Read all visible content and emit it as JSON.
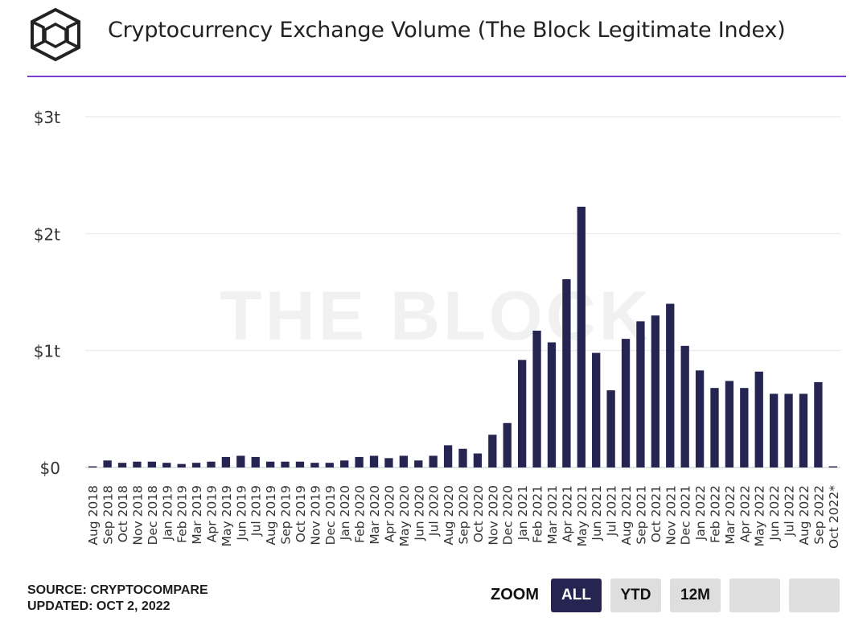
{
  "header": {
    "title": "Cryptocurrency Exchange Volume (The Block Legitimate Index)"
  },
  "watermark": "THE BLOCK",
  "footer": {
    "source": "SOURCE: CRYPTOCOMPARE",
    "updated": "UPDATED: OCT 2, 2022"
  },
  "zoom": {
    "label": "ZOOM",
    "buttons": [
      "ALL",
      "YTD",
      "12M",
      "",
      ""
    ],
    "active": "ALL"
  },
  "colors": {
    "bar": "#262450",
    "rule": "#7b3fd0",
    "grid": "#e6e6e6"
  },
  "chart_data": {
    "type": "bar",
    "title": "Cryptocurrency Exchange Volume (The Block Legitimate Index)",
    "xlabel": "",
    "ylabel": "",
    "ylim": [
      0,
      3
    ],
    "yticks": [
      0,
      1,
      2,
      3
    ],
    "ytick_labels": [
      "$0",
      "$1t",
      "$2t",
      "$3t"
    ],
    "value_unit": "trillion USD",
    "grid": true,
    "legend": "none",
    "categories": [
      "Aug 2018",
      "Sep 2018",
      "Oct 2018",
      "Nov 2018",
      "Dec 2018",
      "Jan 2019",
      "Feb 2019",
      "Mar 2019",
      "Apr 2019",
      "May 2019",
      "Jun 2019",
      "Jul 2019",
      "Aug 2019",
      "Sep 2019",
      "Oct 2019",
      "Nov 2019",
      "Dec 2019",
      "Jan 2020",
      "Feb 2020",
      "Mar 2020",
      "Apr 2020",
      "May 2020",
      "Jun 2020",
      "Jul 2020",
      "Aug 2020",
      "Sep 2020",
      "Oct 2020",
      "Nov 2020",
      "Dec 2020",
      "Jan 2021",
      "Feb 2021",
      "Mar 2021",
      "Apr 2021",
      "May 2021",
      "Jun 2021",
      "Jul 2021",
      "Aug 2021",
      "Sep 2021",
      "Oct 2021",
      "Nov 2021",
      "Dec 2021",
      "Jan 2022",
      "Feb 2022",
      "Mar 2022",
      "Apr 2022",
      "May 2022",
      "Jun 2022",
      "Jul 2022",
      "Aug 2022",
      "Sep 2022",
      "Oct 2022*"
    ],
    "values": [
      0.01,
      0.06,
      0.04,
      0.05,
      0.05,
      0.04,
      0.03,
      0.04,
      0.05,
      0.09,
      0.1,
      0.09,
      0.05,
      0.05,
      0.05,
      0.04,
      0.04,
      0.06,
      0.09,
      0.1,
      0.08,
      0.1,
      0.06,
      0.1,
      0.19,
      0.16,
      0.12,
      0.28,
      0.38,
      0.92,
      1.17,
      1.07,
      1.61,
      2.23,
      0.98,
      0.66,
      1.1,
      1.25,
      1.3,
      1.4,
      1.04,
      0.83,
      0.68,
      0.74,
      0.68,
      0.82,
      0.63,
      0.63,
      0.63,
      0.73,
      0.01
    ]
  }
}
